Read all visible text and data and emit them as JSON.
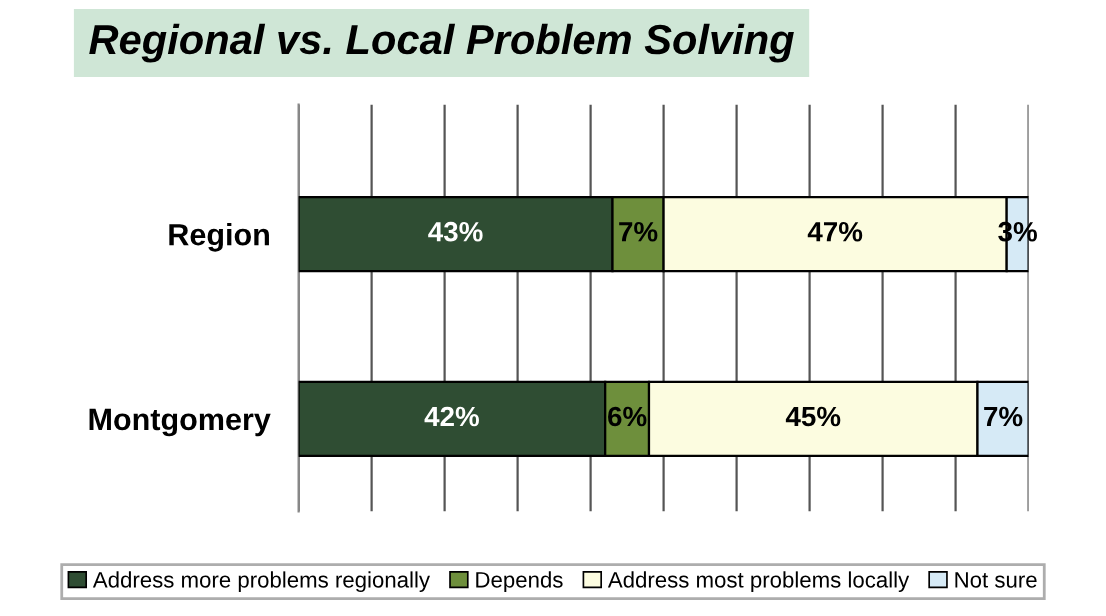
{
  "chart_data": {
    "type": "bar",
    "title": "Regional vs. Local Problem Solving",
    "orientation": "horizontal",
    "stacked": true,
    "categories": [
      "Region",
      "Montgomery"
    ],
    "series": [
      {
        "name": "Address more problems regionally",
        "color": "#2f4d33",
        "values": [
          43,
          42
        ],
        "value_labels": [
          "43%",
          "42%"
        ]
      },
      {
        "name": "Depends",
        "color": "#6e8f3c",
        "values": [
          7,
          6
        ],
        "value_labels": [
          "7%",
          "6%"
        ]
      },
      {
        "name": "Address most problems locally",
        "color": "#fcfce0",
        "values": [
          47,
          45
        ],
        "value_labels": [
          "47%",
          "45%"
        ]
      },
      {
        "name": "Not sure",
        "color": "#d6eaf6",
        "values": [
          3,
          7
        ],
        "value_labels": [
          "3%",
          "7%"
        ]
      }
    ],
    "tick_labels": "y",
    "grid": "x",
    "legend": "bottom"
  }
}
